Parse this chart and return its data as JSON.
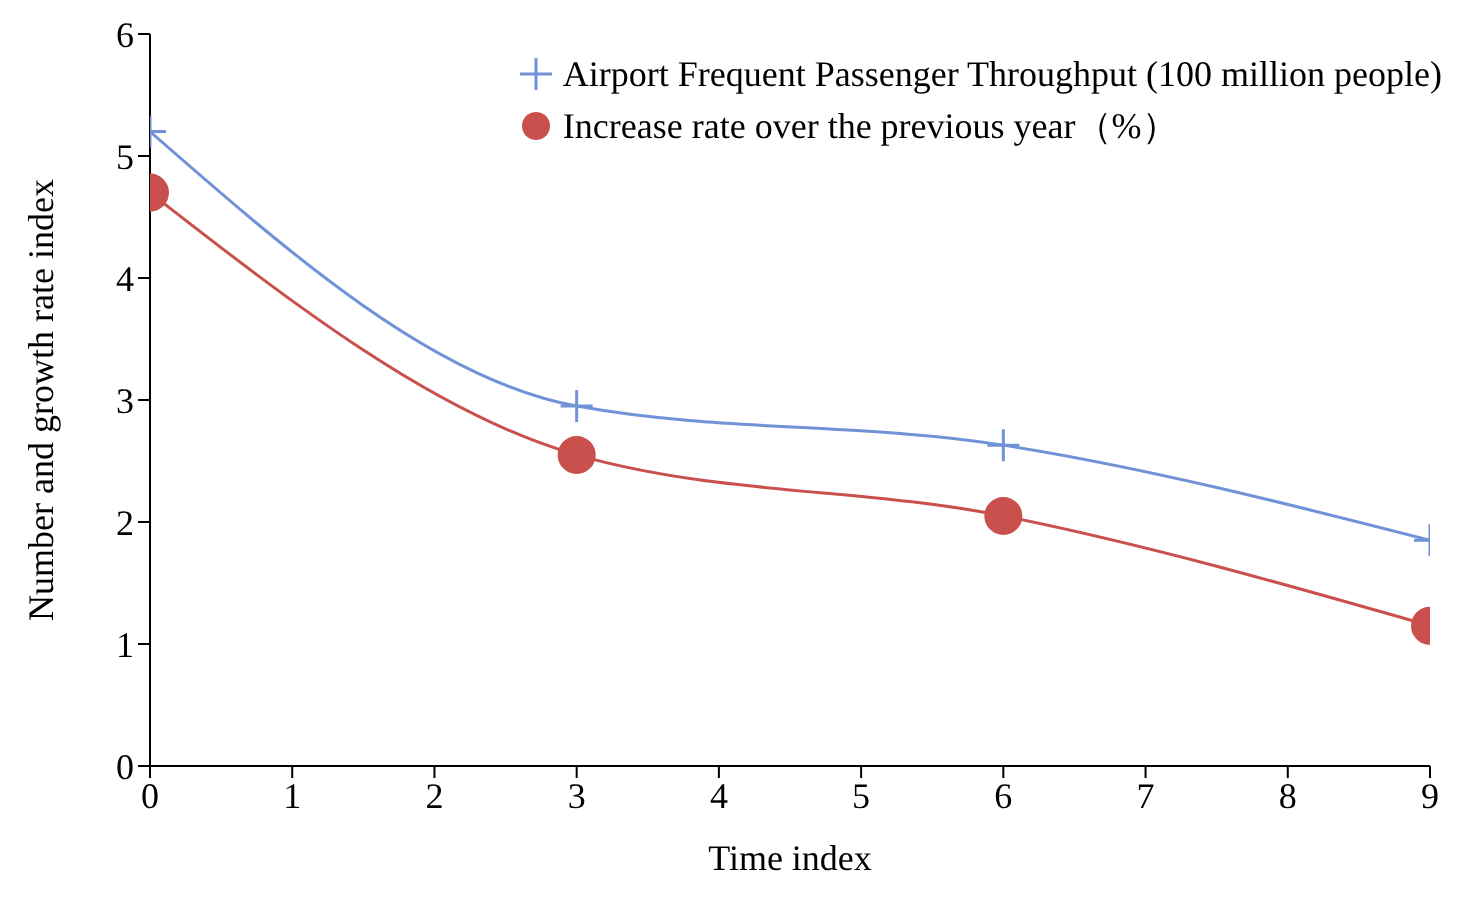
{
  "chart_data": {
    "type": "line",
    "xlabel": "Time index",
    "ylabel": "Number and growth rate index",
    "x": [
      0,
      3,
      6,
      9
    ],
    "series": [
      {
        "name": "Airport Frequent Passenger Throughput (100 million people)",
        "color": "#6f93d6",
        "marker": "cross",
        "values": [
          5.2,
          2.95,
          2.63,
          1.85
        ]
      },
      {
        "name": "Increase rate over the previous year（%）",
        "color": "#c9504c",
        "marker": "circle",
        "values": [
          4.7,
          2.55,
          2.05,
          1.15
        ]
      }
    ],
    "xlim": [
      0,
      9
    ],
    "xticks": [
      0,
      1,
      2,
      3,
      4,
      5,
      6,
      7,
      8,
      9
    ],
    "ylim": [
      0,
      6
    ],
    "yticks": [
      0,
      1,
      2,
      3,
      4,
      5,
      6
    ],
    "grid": false,
    "legend": "top right",
    "line_style": "solid"
  }
}
